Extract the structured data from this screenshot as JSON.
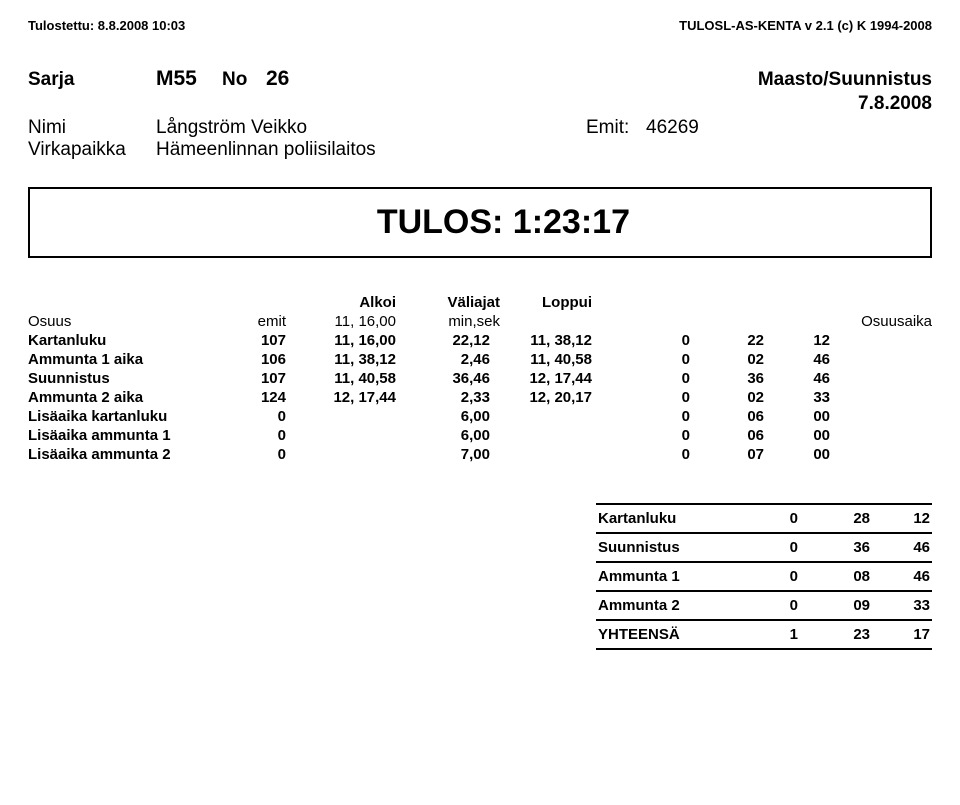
{
  "header": {
    "left": "Tulostettu: 8.8.2008 10:03",
    "right": "TULOSL-AS-KENTA v 2.1 (c) K 1994-2008"
  },
  "series": {
    "label": "Sarja",
    "code": "M55",
    "no_label": "No",
    "no": "26",
    "event": "Maasto/Suunnistus",
    "date": "7.8.2008"
  },
  "info": {
    "name_label": "Nimi",
    "name_value": "Långström Veikko",
    "emit_label": "Emit:",
    "emit_value": "46269",
    "place_label": "Virkapaikka",
    "place_value": "Hämeenlinnan poliisilaitos"
  },
  "result": {
    "text": "TULOS: 1:23:17"
  },
  "columns": {
    "alkoi": "Alkoi",
    "valiajat": "Väliajat",
    "loppui": "Loppui"
  },
  "osuus_row": {
    "name": "Osuus",
    "emit": "emit",
    "start": "11, 16,00",
    "minsek": "min,sek",
    "osuusaika": "Osuusaika"
  },
  "rows": [
    {
      "name": "Kartanluku",
      "emit": "107",
      "t1": "11, 16,00",
      "t2": "22,12",
      "t3": "11, 38,12",
      "z": "0",
      "m": "22",
      "s": "12"
    },
    {
      "name": "Ammunta 1 aika",
      "emit": "106",
      "t1": "11, 38,12",
      "t2": "2,46",
      "t3": "11, 40,58",
      "z": "0",
      "m": "02",
      "s": "46"
    },
    {
      "name": "Suunnistus",
      "emit": "107",
      "t1": "11, 40,58",
      "t2": "36,46",
      "t3": "12, 17,44",
      "z": "0",
      "m": "36",
      "s": "46"
    },
    {
      "name": "Ammunta 2 aika",
      "emit": "124",
      "t1": "12, 17,44",
      "t2": "2,33",
      "t3": "12, 20,17",
      "z": "0",
      "m": "02",
      "s": "33"
    },
    {
      "name": "Lisäaika kartanluku",
      "emit": "0",
      "t1": "",
      "t2": "6,00",
      "t3": "",
      "z": "0",
      "m": "06",
      "s": "00"
    },
    {
      "name": "Lisäaika ammunta 1",
      "emit": "0",
      "t1": "",
      "t2": "6,00",
      "t3": "",
      "z": "0",
      "m": "06",
      "s": "00"
    },
    {
      "name": "Lisäaika ammunta 2",
      "emit": "0",
      "t1": "",
      "t2": "7,00",
      "t3": "",
      "z": "0",
      "m": "07",
      "s": "00"
    }
  ],
  "summary": [
    {
      "name": "Kartanluku",
      "a": "0",
      "b": "28",
      "c": "12"
    },
    {
      "name": "Suunnistus",
      "a": "0",
      "b": "36",
      "c": "46"
    },
    {
      "name": "Ammunta 1",
      "a": "0",
      "b": "08",
      "c": "46"
    },
    {
      "name": "Ammunta 2",
      "a": "0",
      "b": "09",
      "c": "33"
    },
    {
      "name": "YHTEENSÄ",
      "a": "1",
      "b": "23",
      "c": "17"
    }
  ]
}
